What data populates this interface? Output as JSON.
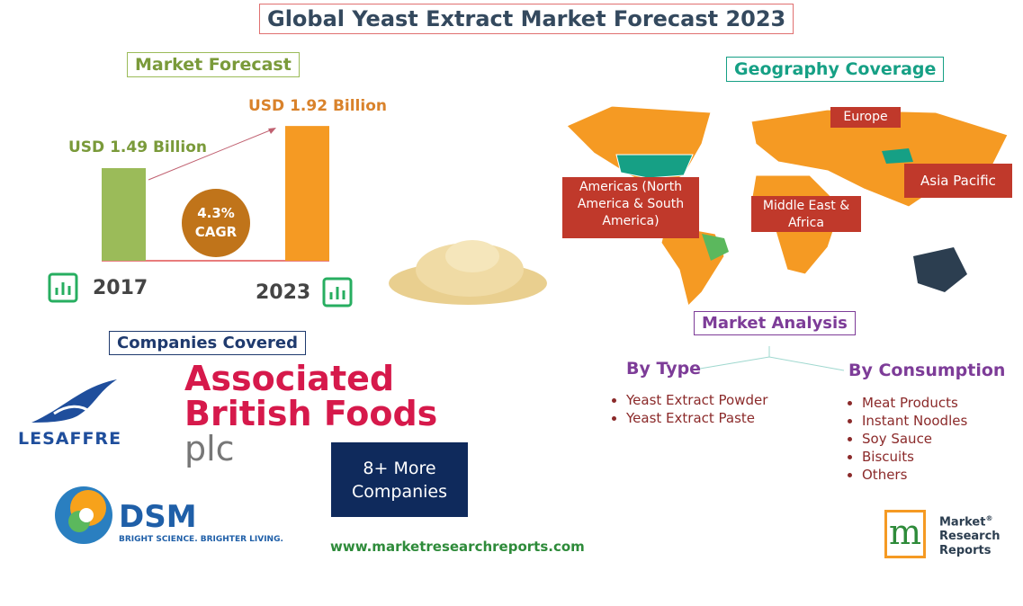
{
  "title": "Global Yeast Extract Market Forecast 2023",
  "market_forecast": {
    "heading": "Market Forecast",
    "bars": [
      {
        "year": "2017",
        "value": 1.49,
        "label": "USD 1.49 Billion",
        "color": "#9bbb59"
      },
      {
        "year": "2023",
        "value": 1.92,
        "label": "USD 1.92 Billion",
        "color": "#f59a23"
      }
    ],
    "cagr": {
      "value": "4.3%",
      "label": "CAGR"
    }
  },
  "companies": {
    "heading": "Companies Covered",
    "lesaffre": "LESAFFRE",
    "abf": [
      "Associated",
      "British Foods",
      "plc"
    ],
    "dsm": {
      "name": "DSM",
      "tagline": "BRIGHT SCIENCE. BRIGHTER LIVING."
    },
    "more": [
      "8+ More",
      "Companies"
    ]
  },
  "website": "www.marketresearchreports.com",
  "geography": {
    "heading": "Geography Coverage",
    "regions": [
      "Europe",
      "Americas (North America & South America)",
      "Middle East & Africa",
      "Asia Pacific"
    ]
  },
  "analysis": {
    "heading": "Market Analysis",
    "by_type": {
      "heading": "By Type",
      "items": [
        "Yeast Extract Powder",
        "Yeast Extract Paste"
      ]
    },
    "by_consumption": {
      "heading": "By Consumption",
      "items": [
        "Meat Products",
        "Instant Noodles",
        "Soy Sauce",
        "Biscuits",
        "Others"
      ]
    }
  },
  "brand": {
    "lines": [
      "Market",
      "Research",
      "Reports"
    ],
    "mark": "®"
  }
}
